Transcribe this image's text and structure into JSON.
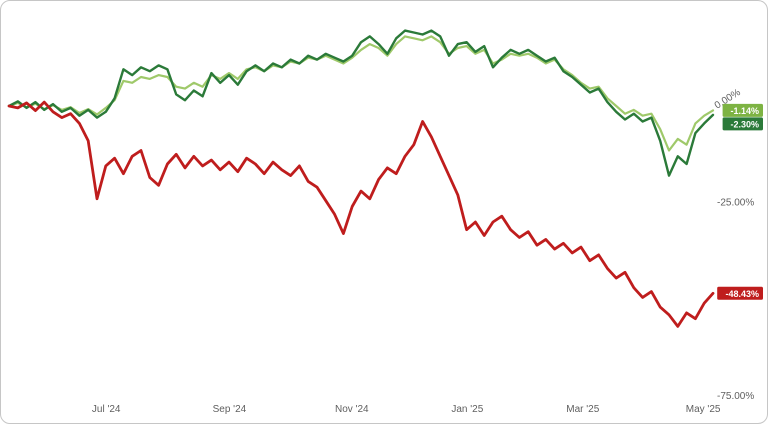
{
  "chart_data": {
    "type": "line",
    "title": "",
    "y_unit": "%",
    "ylim": [
      -75,
      25
    ],
    "grid": false,
    "legend": "end-of-line value badges on right axis",
    "x_axis": {
      "ticks": [
        {
          "label": "Jul '24",
          "f": 0.138
        },
        {
          "label": "Sep '24",
          "f": 0.313
        },
        {
          "label": "Nov '24",
          "f": 0.487
        },
        {
          "label": "Jan '25",
          "f": 0.651
        },
        {
          "label": "Mar '25",
          "f": 0.815
        },
        {
          "label": "May '25",
          "f": 0.986
        }
      ]
    },
    "y_axis": {
      "ticks": [
        {
          "label": "0.00%",
          "value": 0,
          "rotated": true
        },
        {
          "label": "-25.00%",
          "value": -25
        },
        {
          "label": "-75.00%",
          "value": -75
        }
      ]
    },
    "series": [
      {
        "name": "light-green-line",
        "color": "#9fc96a",
        "badge_color": "#7db343",
        "width": 2.2,
        "end_label": "-1.14%",
        "values": [
          0,
          0.8,
          -0.3,
          0.6,
          -0.8,
          0.2,
          -1.0,
          -0.3,
          -1.8,
          -0.8,
          -2.2,
          -0.5,
          1.5,
          6.5,
          6.0,
          7.5,
          7.0,
          8.0,
          7.5,
          5.0,
          4.5,
          6.0,
          5.0,
          8.0,
          7.0,
          8.5,
          7.0,
          9.5,
          10.0,
          9.0,
          10.5,
          10.0,
          11.5,
          11.0,
          12.5,
          12.0,
          13.0,
          12.0,
          11.0,
          12.5,
          14.5,
          16.0,
          15.0,
          13.0,
          16.0,
          18.0,
          17.5,
          17.0,
          18.0,
          16.5,
          13.5,
          15.0,
          15.5,
          13.5,
          14.5,
          11.0,
          12.0,
          13.5,
          13.0,
          13.5,
          12.5,
          11.0,
          12.0,
          9.5,
          8.0,
          6.0,
          4.5,
          5.0,
          2.0,
          0.0,
          -2.0,
          -1.0,
          -2.5,
          -2.0,
          -6.0,
          -11.5,
          -8.5,
          -10.0,
          -4.5,
          -2.5,
          -1.14
        ]
      },
      {
        "name": "dark-green-line",
        "color": "#2b7a39",
        "badge_color": "#2b7a39",
        "width": 2.4,
        "end_label": "-2.30%",
        "values": [
          0,
          1.2,
          -0.5,
          1.0,
          -1.0,
          0.5,
          -1.5,
          -0.5,
          -2.5,
          -1.0,
          -3.0,
          -1.5,
          2.0,
          9.5,
          8.0,
          10.0,
          9.0,
          10.5,
          9.5,
          3.0,
          1.5,
          4.0,
          2.5,
          8.5,
          6.0,
          8.0,
          5.5,
          9.0,
          10.5,
          9.0,
          11.0,
          10.0,
          12.0,
          11.0,
          13.0,
          12.0,
          13.5,
          12.5,
          11.5,
          13.0,
          16.5,
          18.0,
          16.0,
          13.5,
          17.5,
          19.5,
          19.0,
          18.5,
          19.5,
          18.0,
          13.0,
          16.0,
          16.5,
          14.0,
          15.5,
          10.0,
          12.5,
          14.5,
          13.5,
          14.5,
          13.0,
          11.5,
          12.5,
          9.0,
          7.5,
          5.5,
          3.5,
          4.5,
          1.0,
          -1.5,
          -3.5,
          -2.0,
          -4.0,
          -3.0,
          -9.0,
          -18.0,
          -13.0,
          -15.0,
          -7.0,
          -4.5,
          -2.3
        ]
      },
      {
        "name": "red-line",
        "color": "#bf1d1d",
        "badge_color": "#bf1d1d",
        "width": 2.8,
        "end_label": "-48.43%",
        "values": [
          0,
          -0.5,
          0.8,
          -1.2,
          1.0,
          -1.5,
          -3.0,
          -2.0,
          -4.5,
          -9.0,
          -24.0,
          -15.5,
          -13.5,
          -17.5,
          -13.0,
          -11.5,
          -18.5,
          -20.5,
          -15.0,
          -12.5,
          -16.0,
          -13.0,
          -15.5,
          -14.0,
          -16.5,
          -14.5,
          -17.0,
          -13.5,
          -15.0,
          -17.5,
          -14.5,
          -16.5,
          -18.0,
          -15.5,
          -19.5,
          -21.0,
          -24.5,
          -28.0,
          -33.0,
          -26.0,
          -22.0,
          -24.0,
          -19.0,
          -16.0,
          -17.5,
          -13.0,
          -10.0,
          -4.0,
          -8.0,
          -13.0,
          -18.0,
          -23.0,
          -32.0,
          -30.0,
          -33.5,
          -30.0,
          -28.5,
          -32.0,
          -34.0,
          -32.5,
          -36.0,
          -34.5,
          -37.0,
          -35.5,
          -38.0,
          -36.5,
          -40.0,
          -38.5,
          -42.0,
          -44.5,
          -43.0,
          -47.0,
          -49.5,
          -48.0,
          -52.0,
          -54.0,
          -57.0,
          -53.5,
          -55.0,
          -51.0,
          -48.43
        ]
      }
    ]
  }
}
